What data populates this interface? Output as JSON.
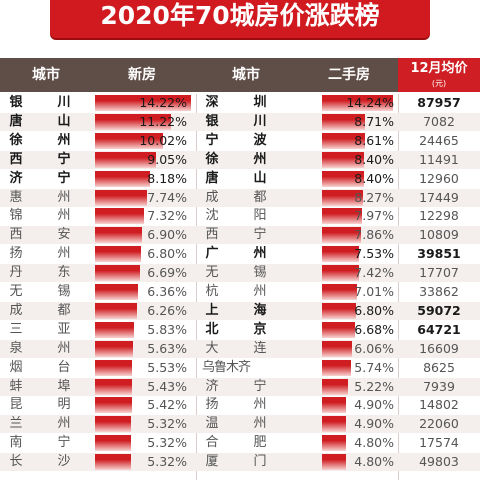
{
  "title": "2020年70城房价涨跌榜",
  "columns": {
    "city": "城市",
    "new": "新房",
    "city2": "城市",
    "second": "二手房",
    "avg": "12月均价",
    "avg_unit": "(元)"
  },
  "colors": {
    "banner": "#d11a1f",
    "header": "#5f4d48",
    "bar_top": "#cf1d22",
    "bar_bottom": "#f7d3d1"
  },
  "chart_data": {
    "type": "table",
    "title": "2020年70城房价涨跌榜",
    "series": [
      {
        "name": "新房",
        "values": [
          14.22,
          11.22,
          10.02,
          9.05,
          8.18,
          7.74,
          7.32,
          6.9,
          6.8,
          6.69,
          6.36,
          6.26,
          5.83,
          5.63,
          5.53,
          5.43,
          5.42,
          5.32,
          5.32,
          5.32
        ]
      },
      {
        "name": "二手房",
        "values": [
          14.24,
          8.71,
          8.61,
          8.4,
          8.4,
          8.27,
          7.97,
          7.86,
          7.53,
          7.42,
          7.01,
          6.8,
          6.68,
          6.06,
          5.74,
          5.22,
          4.9,
          4.9,
          4.8,
          4.8
        ]
      }
    ],
    "x_range": [
      0,
      14.5
    ],
    "rows": [
      {
        "city1": "银川",
        "new": "14.22%",
        "city2": "深圳",
        "second": "14.24%",
        "price": "87957",
        "bold": true,
        "city2_bold": true,
        "price_bold": true
      },
      {
        "city1": "唐山",
        "new": "11.22%",
        "city2": "银川",
        "second": "8.71%",
        "price": "7082",
        "bold": true,
        "city2_bold": true,
        "price_bold": false
      },
      {
        "city1": "徐州",
        "new": "10.02%",
        "city2": "宁波",
        "second": "8.61%",
        "price": "24465",
        "bold": true,
        "city2_bold": true,
        "price_bold": false
      },
      {
        "city1": "西宁",
        "new": "9.05%",
        "city2": "徐州",
        "second": "8.40%",
        "price": "11491",
        "bold": true,
        "city2_bold": true,
        "price_bold": false
      },
      {
        "city1": "济宁",
        "new": "8.18%",
        "city2": "唐山",
        "second": "8.40%",
        "price": "12960",
        "bold": true,
        "city2_bold": true,
        "price_bold": false
      },
      {
        "city1": "惠州",
        "new": "7.74%",
        "city2": "成都",
        "second": "8.27%",
        "price": "17449",
        "bold": false,
        "city2_bold": false,
        "price_bold": false
      },
      {
        "city1": "锦州",
        "new": "7.32%",
        "city2": "沈阳",
        "second": "7.97%",
        "price": "12298",
        "bold": false,
        "city2_bold": false,
        "price_bold": false
      },
      {
        "city1": "西安",
        "new": "6.90%",
        "city2": "西宁",
        "second": "7.86%",
        "price": "10809",
        "bold": false,
        "city2_bold": false,
        "price_bold": false
      },
      {
        "city1": "扬州",
        "new": "6.80%",
        "city2": "广州",
        "second": "7.53%",
        "price": "39851",
        "bold": false,
        "city2_bold": true,
        "price_bold": true
      },
      {
        "city1": "丹东",
        "new": "6.69%",
        "city2": "无锡",
        "second": "7.42%",
        "price": "17707",
        "bold": false,
        "city2_bold": false,
        "price_bold": false
      },
      {
        "city1": "无锡",
        "new": "6.36%",
        "city2": "杭州",
        "second": "7.01%",
        "price": "33862",
        "bold": false,
        "city2_bold": false,
        "price_bold": false
      },
      {
        "city1": "成都",
        "new": "6.26%",
        "city2": "上海",
        "second": "6.80%",
        "price": "59072",
        "bold": false,
        "city2_bold": true,
        "price_bold": true
      },
      {
        "city1": "三亚",
        "new": "5.83%",
        "city2": "北京",
        "second": "6.68%",
        "price": "64721",
        "bold": false,
        "city2_bold": true,
        "price_bold": true
      },
      {
        "city1": "泉州",
        "new": "5.63%",
        "city2": "大连",
        "second": "6.06%",
        "price": "16609",
        "bold": false,
        "city2_bold": false,
        "price_bold": false
      },
      {
        "city1": "烟台",
        "new": "5.53%",
        "city2": "乌鲁木齐",
        "second": "5.74%",
        "price": "8625",
        "bold": false,
        "city2_bold": false,
        "price_bold": false
      },
      {
        "city1": "蚌埠",
        "new": "5.43%",
        "city2": "济宁",
        "second": "5.22%",
        "price": "7939",
        "bold": false,
        "city2_bold": false,
        "price_bold": false
      },
      {
        "city1": "昆明",
        "new": "5.42%",
        "city2": "扬州",
        "second": "4.90%",
        "price": "14802",
        "bold": false,
        "city2_bold": false,
        "price_bold": false
      },
      {
        "city1": "兰州",
        "new": "5.32%",
        "city2": "温州",
        "second": "4.90%",
        "price": "22060",
        "bold": false,
        "city2_bold": false,
        "price_bold": false
      },
      {
        "city1": "南宁",
        "new": "5.32%",
        "city2": "合肥",
        "second": "4.80%",
        "price": "17574",
        "bold": false,
        "city2_bold": false,
        "price_bold": false
      },
      {
        "city1": "长沙",
        "new": "5.32%",
        "city2": "厦门",
        "second": "4.80%",
        "price": "49803",
        "bold": false,
        "city2_bold": false,
        "price_bold": false
      }
    ]
  }
}
